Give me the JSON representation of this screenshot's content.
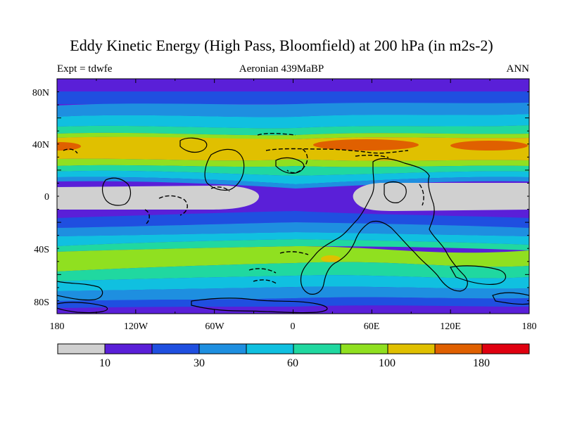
{
  "title": "Eddy Kinetic Energy (High Pass, Bloomfield) at 200 hPa (in m2s-2)",
  "subtitle_left": "Expt = tdwfe",
  "subtitle_center": "Aeronian 439MaBP",
  "subtitle_right": "ANN",
  "colors": {
    "levels": [
      "#d0d0d0",
      "#5a1fd8",
      "#1f4fe0",
      "#1e8fe0",
      "#10c0e0",
      "#20d8a0",
      "#90e020",
      "#e0c000",
      "#e06000",
      "#e00010"
    ]
  },
  "map_data": {
    "type": "contour",
    "projection": "cylindrical-equidistant",
    "lon_range": [
      -180,
      180
    ],
    "lat_range": [
      -90,
      90
    ],
    "lat_ticks": [
      "80N",
      "40N",
      "0",
      "40S",
      "80S"
    ],
    "lon_ticks": [
      "180",
      "120W",
      "60W",
      "0",
      "60E",
      "120E",
      "180"
    ],
    "colorbar_labels": [
      "10",
      "30",
      "60",
      "100",
      "180"
    ]
  }
}
